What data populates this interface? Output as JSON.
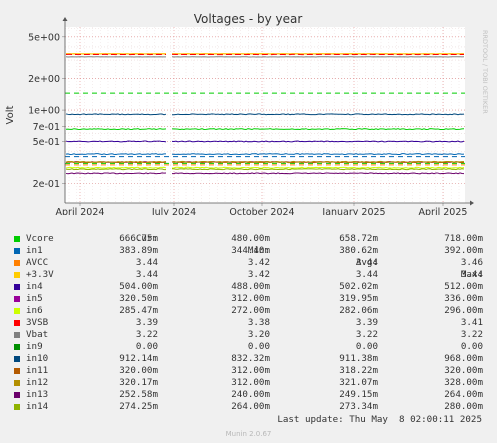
{
  "chart_data": {
    "type": "line",
    "title": "Voltages - by year",
    "ylabel": "Volt",
    "watermark": "RRDTOOL / TOBI OETIKER",
    "y_scale": "log",
    "ylim": [
      0.13,
      6.2
    ],
    "y_ticks": [
      {
        "value": 5,
        "label": "5e+00"
      },
      {
        "value": 2,
        "label": "2e+00"
      },
      {
        "value": 1,
        "label": "1e+00"
      },
      {
        "value": 0.7,
        "label": "7e-01"
      },
      {
        "value": 0.5,
        "label": "5e-01"
      },
      {
        "value": 0.2,
        "label": "2e-01"
      }
    ],
    "x_ticks": [
      "April 2024",
      "July 2024",
      "October 2024",
      "January 2025",
      "April 2025"
    ],
    "series": [
      {
        "name": "Vcore",
        "color": "#00cc00",
        "cur": "666.75m",
        "min": "480.00m",
        "avg": "658.72m",
        "max": "718.00m",
        "level": 0.6587,
        "style": "solid"
      },
      {
        "name": "in1",
        "color": "#0066b3",
        "cur": "383.89m",
        "min": "344.40m",
        "avg": "380.62m",
        "max": "392.00m",
        "level": 0.3806,
        "style": "solid"
      },
      {
        "name": "AVCC",
        "color": "#ff8000",
        "cur": "3.44",
        "min": "3.42",
        "avg": "3.44",
        "max": "3.46",
        "level": 3.44,
        "style": "solid"
      },
      {
        "name": "+3.3V",
        "color": "#ffcc00",
        "cur": "3.44",
        "min": "3.42",
        "avg": "3.44",
        "max": "3.44",
        "level": 3.44,
        "style": "solid"
      },
      {
        "name": "in4",
        "color": "#330099",
        "cur": "504.00m",
        "min": "488.00m",
        "avg": "502.02m",
        "max": "512.00m",
        "level": 0.502,
        "style": "solid"
      },
      {
        "name": "in5",
        "color": "#990099",
        "cur": "320.50m",
        "min": "312.00m",
        "avg": "319.95m",
        "max": "336.00m",
        "level": 0.3199,
        "style": "solid"
      },
      {
        "name": "in6",
        "color": "#ccff00",
        "cur": "285.47m",
        "min": "272.00m",
        "avg": "282.06m",
        "max": "296.00m",
        "level": 0.282,
        "style": "solid"
      },
      {
        "name": "3VSB",
        "color": "#ff0000",
        "cur": "3.39",
        "min": "3.38",
        "avg": "3.39",
        "max": "3.41",
        "level": 3.39,
        "style": "dash"
      },
      {
        "name": "Vbat",
        "color": "#808080",
        "cur": "3.22",
        "min": "3.20",
        "avg": "3.22",
        "max": "3.22",
        "level": 3.22,
        "style": "solid"
      },
      {
        "name": "in9",
        "color": "#008f00",
        "cur": "0.00",
        "min": "0.00",
        "avg": "0.00",
        "max": "0.00",
        "level": 0,
        "style": "solid"
      },
      {
        "name": "in10",
        "color": "#00487d",
        "cur": "912.14m",
        "min": "832.32m",
        "avg": "911.38m",
        "max": "968.00m",
        "level": 0.9114,
        "style": "solid"
      },
      {
        "name": "in11",
        "color": "#b35a00",
        "cur": "320.00m",
        "min": "312.00m",
        "avg": "318.22m",
        "max": "320.00m",
        "level": 0.3182,
        "style": "solid"
      },
      {
        "name": "in12",
        "color": "#b38f00",
        "cur": "320.17m",
        "min": "312.00m",
        "avg": "321.07m",
        "max": "328.00m",
        "level": 0.321,
        "style": "solid"
      },
      {
        "name": "in13",
        "color": "#6b006b",
        "cur": "252.58m",
        "min": "240.00m",
        "avg": "249.15m",
        "max": "264.00m",
        "level": 0.2492,
        "style": "solid"
      },
      {
        "name": "in14",
        "color": "#8fb300",
        "cur": "274.25m",
        "min": "264.00m",
        "avg": "273.34m",
        "max": "280.00m",
        "level": 0.2733,
        "style": "solid"
      }
    ],
    "thresholds": [
      {
        "value": 1.45,
        "color": "#00cc00"
      },
      {
        "value": 0.31,
        "color": "#00cc00"
      },
      {
        "value": 0.36,
        "color": "#0066b3"
      },
      {
        "value": 0.3,
        "color": "#ff8000"
      }
    ]
  },
  "legend": {
    "headers": [
      "Cur:",
      "Min:",
      "Avg:",
      "Max:"
    ]
  },
  "last_update": "Last update: Thu May  8 02:00:11 2025",
  "footer": "Munin 2.0.67"
}
